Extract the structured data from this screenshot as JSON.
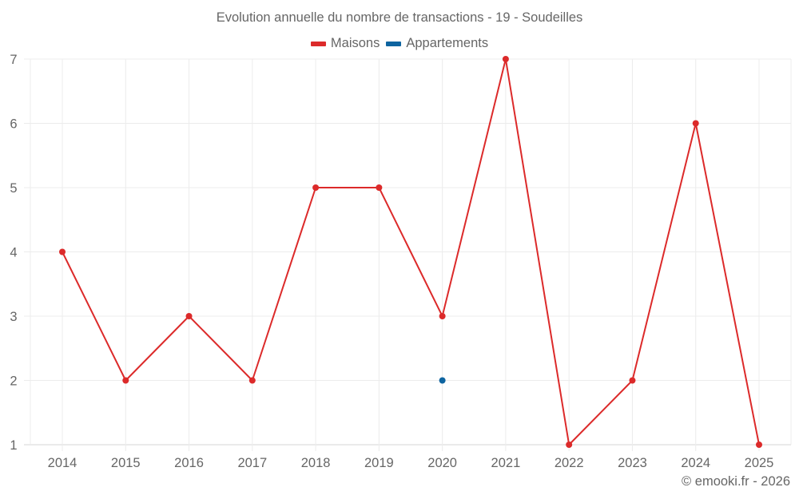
{
  "header": {
    "title": "Evolution annuelle du nombre de transactions - 19 - Soudeilles"
  },
  "legend": {
    "items": [
      {
        "label": "Maisons",
        "color": "#dc2a2a"
      },
      {
        "label": "Appartements",
        "color": "#0e64a0"
      }
    ]
  },
  "footer": {
    "credit": "© emooki.fr - 2026"
  },
  "chart_data": {
    "type": "line",
    "title": "Evolution annuelle du nombre de transactions - 19 - Soudeilles",
    "xlabel": "",
    "ylabel": "",
    "categories": [
      "2014",
      "2015",
      "2016",
      "2017",
      "2018",
      "2019",
      "2020",
      "2021",
      "2022",
      "2023",
      "2024",
      "2025"
    ],
    "series": [
      {
        "name": "Maisons",
        "color": "#dc2a2a",
        "values": [
          4,
          2,
          3,
          2,
          5,
          5,
          3,
          7,
          1,
          2,
          6,
          1
        ]
      },
      {
        "name": "Appartements",
        "color": "#0e64a0",
        "values": [
          null,
          null,
          null,
          null,
          null,
          null,
          2,
          null,
          null,
          null,
          null,
          null
        ]
      }
    ],
    "ylim": [
      1,
      7
    ],
    "yticks": [
      1,
      2,
      3,
      4,
      5,
      6,
      7
    ],
    "grid": true,
    "legend_position": "top"
  }
}
